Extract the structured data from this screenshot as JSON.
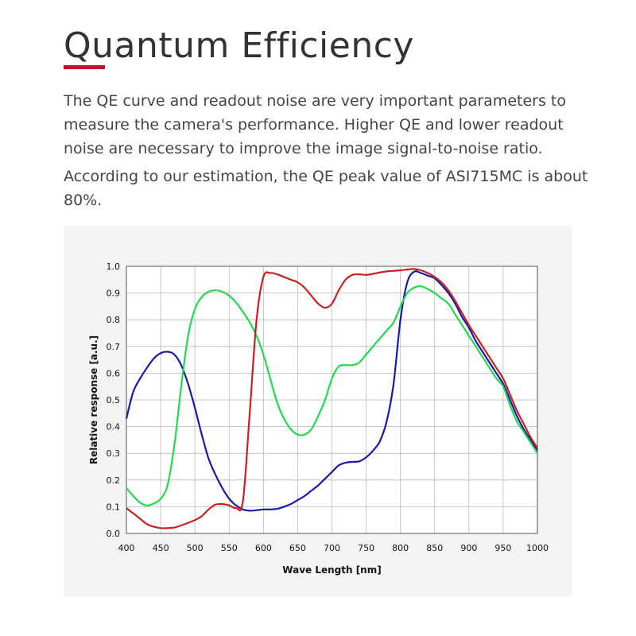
{
  "page": {
    "title": "Quantum Efficiency",
    "paragraphs": [
      "The QE curve and readout noise are very important parameters to measure the camera's performance. Higher QE and lower readout noise are necessary to improve the image signal-to-noise ratio.",
      "According to our estimation, the QE peak value of ASI715MC is about 80%."
    ],
    "accent_color": "#c8102e"
  },
  "chart_data": {
    "type": "line",
    "xlabel": "Wave Length [nm]",
    "ylabel": "Relative response  [a.u.]",
    "xlim": [
      400,
      1000
    ],
    "ylim": [
      0,
      1.0
    ],
    "xticks": [
      400,
      450,
      500,
      550,
      600,
      650,
      700,
      750,
      800,
      850,
      900,
      950,
      1000
    ],
    "yticks": [
      0.0,
      0.1,
      0.2,
      0.3,
      0.4,
      0.5,
      0.6,
      0.7,
      0.8,
      0.9,
      1.0
    ],
    "ytick_labels": [
      "0.0",
      "0.1",
      "0.2",
      "0.3",
      "0.4",
      "0.5",
      "0.6",
      "0.7",
      "0.8",
      "0.9",
      "1.0"
    ],
    "grid": true,
    "series": [
      {
        "color": "#1a1aa6",
        "x": [
          400,
          410,
          420,
          430,
          440,
          450,
          460,
          470,
          480,
          490,
          500,
          510,
          520,
          530,
          540,
          550,
          560,
          570,
          580,
          590,
          600,
          610,
          620,
          630,
          640,
          650,
          660,
          670,
          680,
          690,
          700,
          710,
          720,
          730,
          740,
          750,
          760,
          770,
          780,
          790,
          800,
          810,
          820,
          830,
          840,
          850,
          860,
          870,
          880,
          890,
          900,
          910,
          920,
          930,
          940,
          950,
          960,
          970,
          980,
          990,
          1000
        ],
        "y": [
          0.43,
          0.53,
          0.58,
          0.62,
          0.655,
          0.675,
          0.68,
          0.67,
          0.63,
          0.56,
          0.47,
          0.37,
          0.28,
          0.22,
          0.17,
          0.13,
          0.105,
          0.09,
          0.085,
          0.087,
          0.09,
          0.09,
          0.092,
          0.1,
          0.11,
          0.125,
          0.14,
          0.16,
          0.18,
          0.205,
          0.23,
          0.255,
          0.265,
          0.268,
          0.27,
          0.285,
          0.31,
          0.345,
          0.42,
          0.56,
          0.8,
          0.94,
          0.98,
          0.975,
          0.965,
          0.955,
          0.93,
          0.9,
          0.86,
          0.81,
          0.77,
          0.72,
          0.68,
          0.64,
          0.6,
          0.56,
          0.5,
          0.44,
          0.39,
          0.35,
          0.31
        ]
      },
      {
        "color": "#22d94f",
        "x": [
          400,
          410,
          420,
          430,
          440,
          450,
          460,
          470,
          480,
          490,
          500,
          510,
          520,
          530,
          540,
          550,
          560,
          570,
          580,
          590,
          600,
          610,
          620,
          630,
          640,
          650,
          660,
          670,
          680,
          690,
          700,
          710,
          720,
          730,
          740,
          750,
          760,
          770,
          780,
          790,
          800,
          810,
          820,
          830,
          840,
          850,
          860,
          870,
          880,
          890,
          900,
          910,
          920,
          930,
          940,
          950,
          960,
          970,
          980,
          990,
          1000
        ],
        "y": [
          0.17,
          0.14,
          0.115,
          0.105,
          0.112,
          0.13,
          0.18,
          0.33,
          0.55,
          0.74,
          0.84,
          0.885,
          0.905,
          0.91,
          0.905,
          0.89,
          0.865,
          0.83,
          0.79,
          0.74,
          0.67,
          0.58,
          0.49,
          0.43,
          0.39,
          0.37,
          0.37,
          0.39,
          0.44,
          0.5,
          0.58,
          0.625,
          0.63,
          0.63,
          0.64,
          0.67,
          0.7,
          0.73,
          0.76,
          0.79,
          0.85,
          0.9,
          0.92,
          0.925,
          0.915,
          0.9,
          0.88,
          0.86,
          0.82,
          0.78,
          0.74,
          0.7,
          0.66,
          0.62,
          0.58,
          0.55,
          0.48,
          0.42,
          0.38,
          0.34,
          0.3
        ]
      },
      {
        "color": "#cc1f1f",
        "x": [
          400,
          410,
          420,
          430,
          440,
          450,
          460,
          470,
          480,
          490,
          500,
          510,
          520,
          530,
          540,
          550,
          560,
          570,
          580,
          590,
          600,
          610,
          620,
          630,
          640,
          650,
          660,
          670,
          680,
          690,
          700,
          710,
          720,
          730,
          740,
          750,
          760,
          770,
          780,
          790,
          800,
          810,
          820,
          830,
          840,
          850,
          860,
          870,
          880,
          890,
          900,
          910,
          920,
          930,
          940,
          950,
          960,
          970,
          980,
          990,
          1000
        ],
        "y": [
          0.095,
          0.075,
          0.055,
          0.035,
          0.025,
          0.02,
          0.02,
          0.022,
          0.03,
          0.04,
          0.05,
          0.065,
          0.09,
          0.108,
          0.11,
          0.105,
          0.095,
          0.12,
          0.45,
          0.8,
          0.96,
          0.975,
          0.97,
          0.96,
          0.95,
          0.94,
          0.92,
          0.89,
          0.86,
          0.845,
          0.86,
          0.91,
          0.95,
          0.968,
          0.97,
          0.968,
          0.972,
          0.977,
          0.981,
          0.983,
          0.985,
          0.988,
          0.99,
          0.985,
          0.975,
          0.96,
          0.94,
          0.91,
          0.87,
          0.825,
          0.78,
          0.74,
          0.7,
          0.66,
          0.62,
          0.58,
          0.52,
          0.46,
          0.41,
          0.36,
          0.32
        ]
      }
    ]
  }
}
